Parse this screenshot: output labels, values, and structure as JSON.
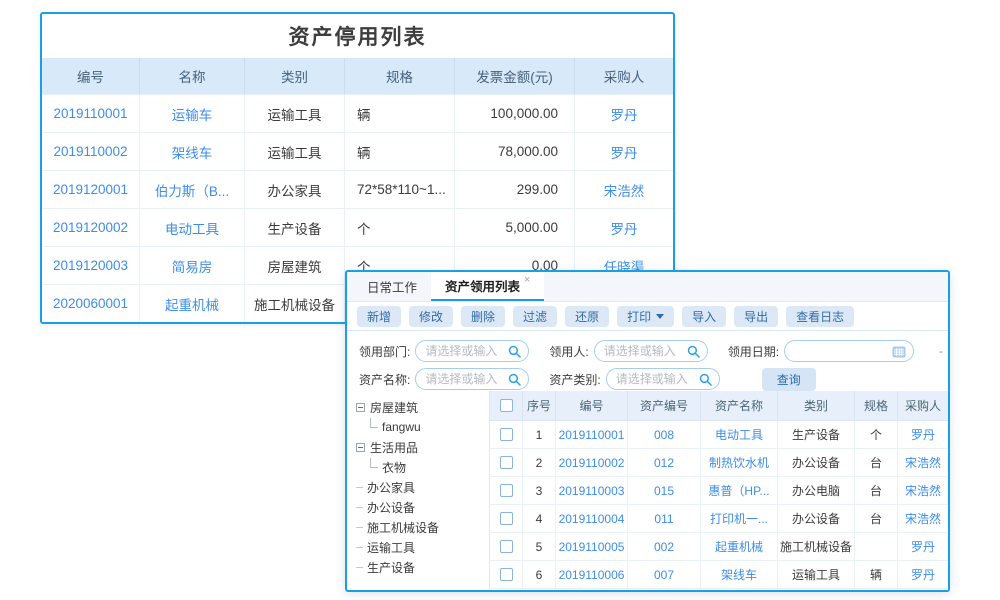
{
  "colors": {
    "panel_border": "#1b9fe3",
    "link_blue": "#3e8de8",
    "header_bg": "#d8e9f9",
    "accent_underline": "#1f97e6"
  },
  "asset_stop_list": {
    "title": "资产停用列表",
    "columns": [
      "编号",
      "名称",
      "类别",
      "规格",
      "发票金额(元)",
      "采购人"
    ],
    "rows": [
      [
        "2019110001",
        "运输车",
        "运输工具",
        "辆",
        "100,000.00",
        "罗丹"
      ],
      [
        "2019110002",
        "架线车",
        "运输工具",
        "辆",
        "78,000.00",
        "罗丹"
      ],
      [
        "2019120001",
        "伯力斯（B...",
        "办公家具",
        "72*58*110~1...",
        "299.00",
        "宋浩然"
      ],
      [
        "2019120002",
        "电动工具",
        "生产设备",
        "个",
        "5,000.00",
        "罗丹"
      ],
      [
        "2019120003",
        "简易房",
        "房屋建筑",
        "个",
        "0.00",
        "任晓渠"
      ],
      [
        "2020060001",
        "起重机械",
        "施工机械设备",
        "",
        "",
        ""
      ]
    ]
  },
  "tabs": [
    {
      "label": "日常工作",
      "name": "daily-work",
      "active": false,
      "closable": false
    },
    {
      "label": "资产领用列表",
      "name": "asset-requisition-list",
      "active": true,
      "closable": true,
      "close": "×"
    }
  ],
  "toolbar": {
    "buttons": [
      {
        "label": "新增",
        "name": "add"
      },
      {
        "label": "修改",
        "name": "edit"
      },
      {
        "label": "删除",
        "name": "delete"
      },
      {
        "label": "过滤",
        "name": "filter"
      },
      {
        "label": "还原",
        "name": "restore"
      },
      {
        "label": "打印",
        "name": "print",
        "dropdown": true
      },
      {
        "label": "导入",
        "name": "import"
      },
      {
        "label": "导出",
        "name": "export"
      },
      {
        "label": "查看日志",
        "name": "view-log"
      }
    ]
  },
  "filters": {
    "row1": [
      {
        "label": "领用部门:",
        "name": "requisition-dept",
        "placeholder": "请选择或输入",
        "icon": "search"
      },
      {
        "label": "领用人:",
        "name": "requisition-user",
        "placeholder": "请选择或输入",
        "icon": "search"
      },
      {
        "label": "领用日期:",
        "name": "requisition-date",
        "placeholder": "",
        "icon": "calendar"
      }
    ],
    "row2": [
      {
        "label": "资产名称:",
        "name": "asset-name",
        "placeholder": "请选择或输入",
        "icon": "search"
      },
      {
        "label": "资产类别:",
        "name": "asset-category",
        "placeholder": "请选择或输入",
        "icon": "search"
      }
    ],
    "date_separator": "-",
    "search_label": "查询"
  },
  "tree": {
    "items": [
      {
        "label": "房屋建筑",
        "type": "parent"
      },
      {
        "label": "fangwu",
        "type": "child"
      },
      {
        "label": "生活用品",
        "type": "parent"
      },
      {
        "label": "衣物",
        "type": "child"
      },
      {
        "label": "办公家具",
        "type": "leaf"
      },
      {
        "label": "办公设备",
        "type": "leaf"
      },
      {
        "label": "施工机械设备",
        "type": "leaf"
      },
      {
        "label": "运输工具",
        "type": "leaf"
      },
      {
        "label": "生产设备",
        "type": "leaf"
      }
    ]
  },
  "req_table": {
    "columns": [
      "序号",
      "编号",
      "资产编号",
      "资产名称",
      "类别",
      "规格",
      "采购人"
    ],
    "rows": [
      {
        "no": "1",
        "code": "2019110001",
        "asset_no": "008",
        "name": "电动工具",
        "category": "生产设备",
        "spec": "个",
        "buyer": "罗丹"
      },
      {
        "no": "2",
        "code": "2019110002",
        "asset_no": "012",
        "name": "制热饮水机",
        "category": "办公设备",
        "spec": "台",
        "buyer": "宋浩然"
      },
      {
        "no": "3",
        "code": "2019110003",
        "asset_no": "015",
        "name": "惠普（HP...",
        "category": "办公电脑",
        "spec": "台",
        "buyer": "宋浩然"
      },
      {
        "no": "4",
        "code": "2019110004",
        "asset_no": "011",
        "name": "打印机一...",
        "category": "办公设备",
        "spec": "台",
        "buyer": "宋浩然"
      },
      {
        "no": "5",
        "code": "2019110005",
        "asset_no": "002",
        "name": "起重机械",
        "category": "施工机械设备",
        "spec": "",
        "buyer": "罗丹"
      },
      {
        "no": "6",
        "code": "2019110006",
        "asset_no": "007",
        "name": "架线车",
        "category": "运输工具",
        "spec": "辆",
        "buyer": "罗丹"
      }
    ]
  }
}
